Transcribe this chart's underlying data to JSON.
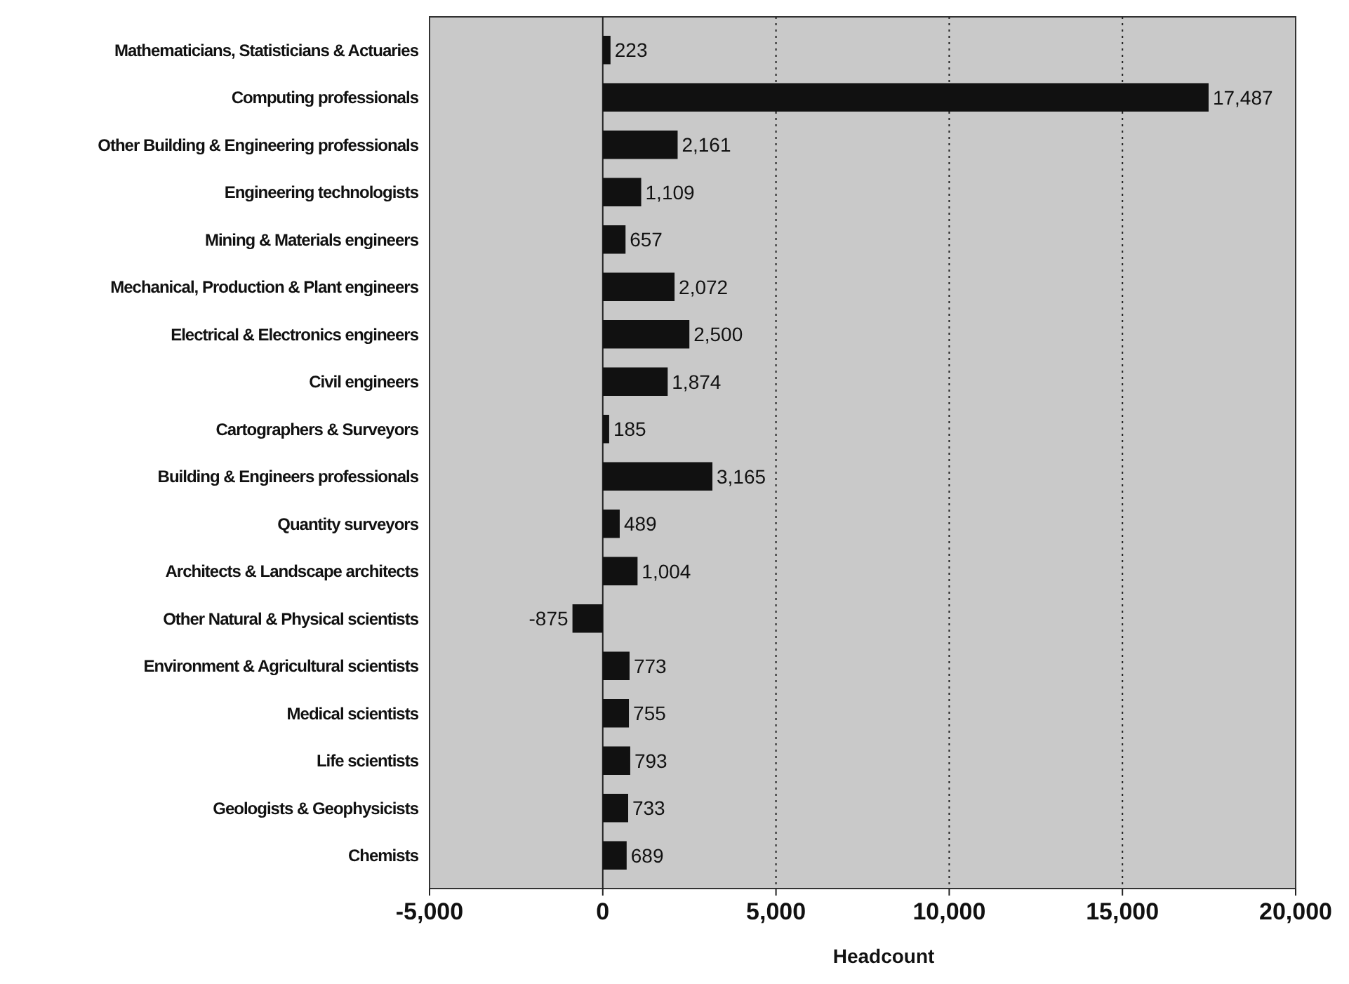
{
  "chart_data": {
    "type": "bar",
    "orientation": "horizontal",
    "xlabel": "Headcount",
    "categories": [
      "Mathematicians, Statisticians & Actuaries",
      "Computing professionals",
      "Other Building & Engineering professionals",
      "Engineering technologists",
      "Mining & Materials engineers",
      "Mechanical, Production & Plant engineers",
      "Electrical & Electronics engineers",
      "Civil engineers",
      "Cartographers & Surveyors",
      "Building & Engineers professionals",
      "Quantity surveyors",
      "Architects & Landscape architects",
      "Other Natural & Physical scientists",
      "Environment & Agricultural scientists",
      "Medical scientists",
      "Life scientists",
      "Geologists & Geophysicists",
      "Chemists"
    ],
    "values": [
      223,
      17487,
      2161,
      1109,
      657,
      2072,
      2500,
      1874,
      185,
      3165,
      489,
      1004,
      -875,
      773,
      755,
      793,
      733,
      689
    ],
    "value_labels": [
      "223",
      "17,487",
      "2,161",
      "1,109",
      "657",
      "2,072",
      "2,500",
      "1,874",
      "185",
      "3,165",
      "489",
      "1,004",
      "-875",
      "773",
      "755",
      "793",
      "733",
      "689"
    ],
    "color": "#111111",
    "xlim": [
      -5000,
      20000
    ],
    "xticks": [
      {
        "value": -5000,
        "label": "-5,000"
      },
      0,
      {
        "value": 5000,
        "label": "5,000"
      },
      {
        "value": 10000,
        "label": "10,000"
      },
      {
        "value": 15000,
        "label": "15,000"
      },
      {
        "value": 20000,
        "label": "20,000"
      }
    ],
    "grid": "x"
  }
}
